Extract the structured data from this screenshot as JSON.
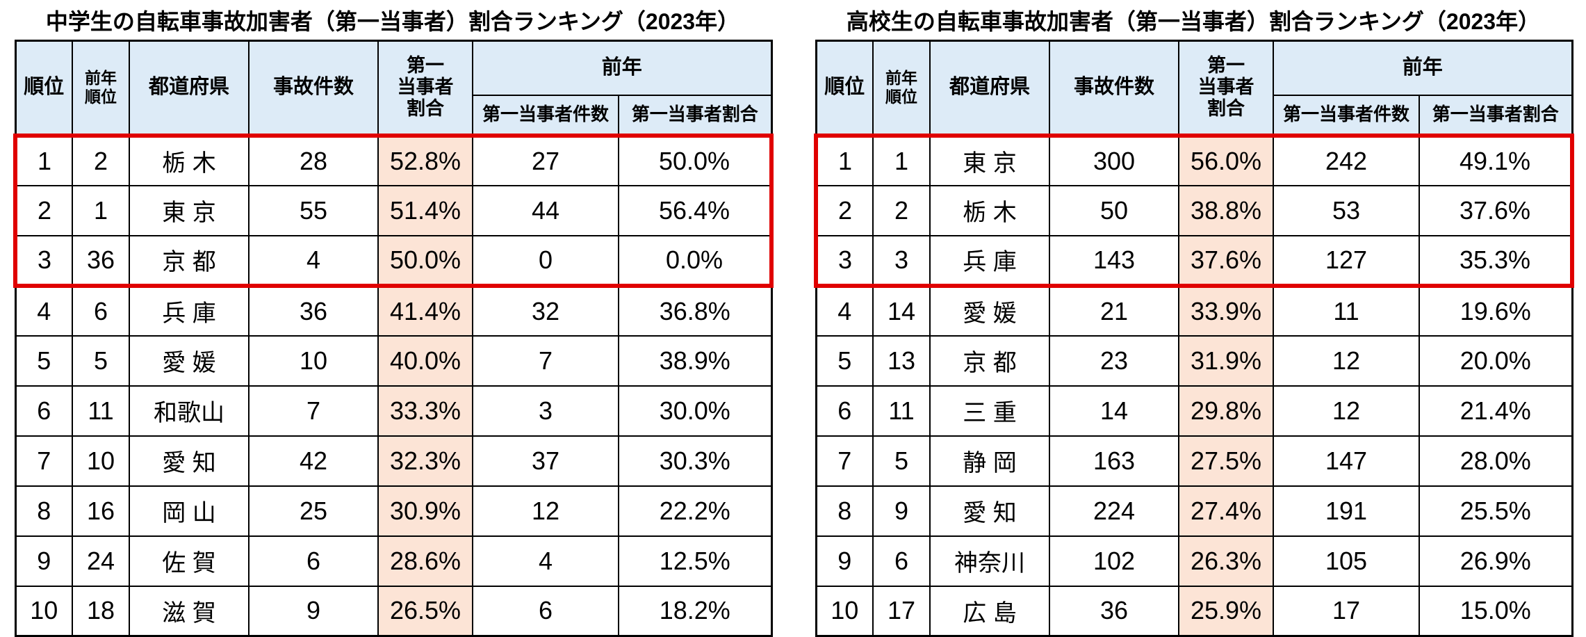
{
  "colors": {
    "header_bg": "#ddebf7",
    "ratio_bg": "#fce4d6",
    "highlight_border": "#e00000",
    "grid": "#000000"
  },
  "chart_data": [
    {
      "type": "table",
      "title": "中学生の自転車事故加害者（第一当事者）割合ランキング（2023年）",
      "header": {
        "rank": "順位",
        "prev_rank": "前年\n順位",
        "prefecture": "都道府県",
        "accidents": "事故件数",
        "first_party_ratio": "第一\n当事者\n割合",
        "prev_year_group": "前年",
        "prev_year_count": "第一当事者件数",
        "prev_year_ratio": "第一当事者割合"
      },
      "highlight_top_rows": 3,
      "rows": [
        [
          "1",
          "2",
          "栃 木",
          "28",
          "52.8%",
          "27",
          "50.0%"
        ],
        [
          "2",
          "1",
          "東 京",
          "55",
          "51.4%",
          "44",
          "56.4%"
        ],
        [
          "3",
          "36",
          "京 都",
          "4",
          "50.0%",
          "0",
          "0.0%"
        ],
        [
          "4",
          "6",
          "兵 庫",
          "36",
          "41.4%",
          "32",
          "36.8%"
        ],
        [
          "5",
          "5",
          "愛 媛",
          "10",
          "40.0%",
          "7",
          "38.9%"
        ],
        [
          "6",
          "11",
          "和歌山",
          "7",
          "33.3%",
          "3",
          "30.0%"
        ],
        [
          "7",
          "10",
          "愛 知",
          "42",
          "32.3%",
          "37",
          "30.3%"
        ],
        [
          "8",
          "16",
          "岡 山",
          "25",
          "30.9%",
          "12",
          "22.2%"
        ],
        [
          "9",
          "24",
          "佐 賀",
          "6",
          "28.6%",
          "4",
          "12.5%"
        ],
        [
          "10",
          "18",
          "滋 賀",
          "9",
          "26.5%",
          "6",
          "18.2%"
        ]
      ]
    },
    {
      "type": "table",
      "title": "高校生の自転車事故加害者（第一当事者）割合ランキング（2023年）",
      "header": {
        "rank": "順位",
        "prev_rank": "前年\n順位",
        "prefecture": "都道府県",
        "accidents": "事故件数",
        "first_party_ratio": "第一\n当事者\n割合",
        "prev_year_group": "前年",
        "prev_year_count": "第一当事者件数",
        "prev_year_ratio": "第一当事者割合"
      },
      "highlight_top_rows": 3,
      "rows": [
        [
          "1",
          "1",
          "東 京",
          "300",
          "56.0%",
          "242",
          "49.1%"
        ],
        [
          "2",
          "2",
          "栃 木",
          "50",
          "38.8%",
          "53",
          "37.6%"
        ],
        [
          "3",
          "3",
          "兵 庫",
          "143",
          "37.6%",
          "127",
          "35.3%"
        ],
        [
          "4",
          "14",
          "愛 媛",
          "21",
          "33.9%",
          "11",
          "19.6%"
        ],
        [
          "5",
          "13",
          "京 都",
          "23",
          "31.9%",
          "12",
          "20.0%"
        ],
        [
          "6",
          "11",
          "三 重",
          "14",
          "29.8%",
          "12",
          "21.4%"
        ],
        [
          "7",
          "5",
          "静 岡",
          "163",
          "27.5%",
          "147",
          "28.0%"
        ],
        [
          "8",
          "9",
          "愛 知",
          "224",
          "27.4%",
          "191",
          "25.5%"
        ],
        [
          "9",
          "6",
          "神奈川",
          "102",
          "26.3%",
          "105",
          "26.9%"
        ],
        [
          "10",
          "17",
          "広 島",
          "36",
          "25.9%",
          "17",
          "15.0%"
        ]
      ]
    }
  ]
}
